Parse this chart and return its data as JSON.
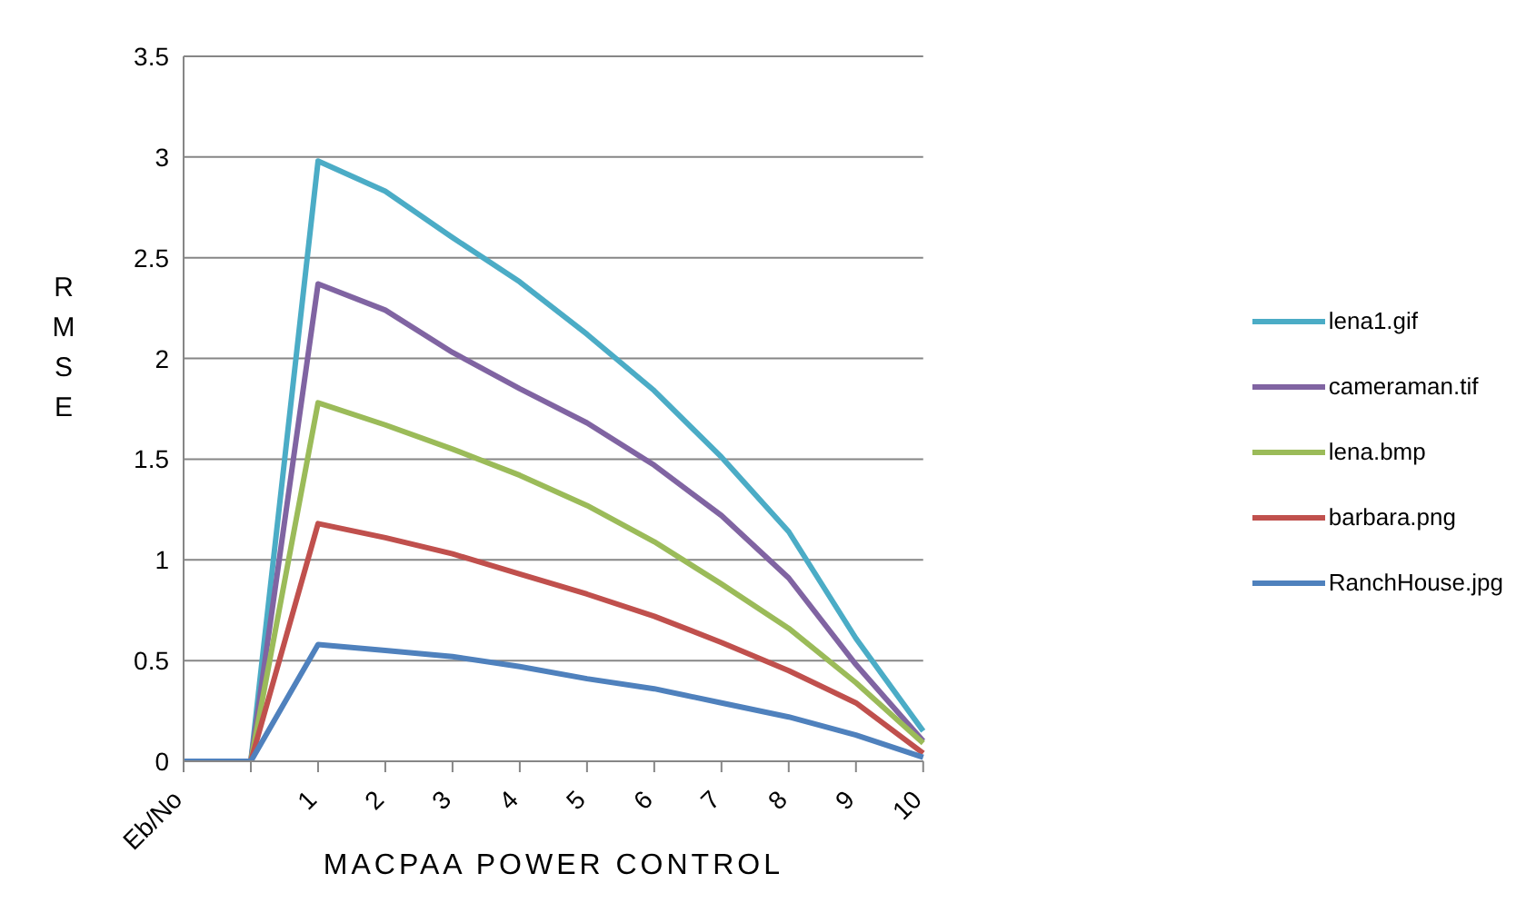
{
  "chart_data": {
    "type": "line",
    "xlabel": "MACPAA POWER CONTROL",
    "ylabel": "RMSE",
    "categories": [
      "Eb/No",
      null,
      "1",
      "2",
      "3",
      "4",
      "5",
      "6",
      "7",
      "8",
      "9",
      "10"
    ],
    "series": [
      {
        "name": "lena1.gif",
        "color": "#4bacc6",
        "values": [
          0,
          0,
          2.98,
          2.83,
          2.6,
          2.38,
          2.12,
          1.84,
          1.51,
          1.14,
          0.61,
          0.15
        ]
      },
      {
        "name": "cameraman.tif",
        "color": "#8064a2",
        "values": [
          0,
          0,
          2.37,
          2.24,
          2.03,
          1.85,
          1.68,
          1.47,
          1.22,
          0.91,
          0.48,
          0.1
        ]
      },
      {
        "name": "lena.bmp",
        "color": "#9bbb59",
        "values": [
          0,
          0,
          1.78,
          1.67,
          1.55,
          1.42,
          1.27,
          1.09,
          0.88,
          0.66,
          0.39,
          0.09
        ]
      },
      {
        "name": "barbara.png",
        "color": "#c0504d",
        "values": [
          0,
          0,
          1.18,
          1.11,
          1.03,
          0.93,
          0.83,
          0.72,
          0.59,
          0.45,
          0.29,
          0.04
        ]
      },
      {
        "name": "RanchHouse.jpg",
        "color": "#4f81bd",
        "values": [
          0,
          0,
          0.58,
          0.55,
          0.52,
          0.47,
          0.41,
          0.36,
          0.29,
          0.22,
          0.13,
          0.02
        ]
      }
    ],
    "ylim": [
      0,
      3.5
    ],
    "yticks": [
      0,
      0.5,
      1,
      1.5,
      2,
      2.5,
      3,
      3.5
    ],
    "grid": "y",
    "legend": "right",
    "marker": "none",
    "line_style": "solid"
  }
}
